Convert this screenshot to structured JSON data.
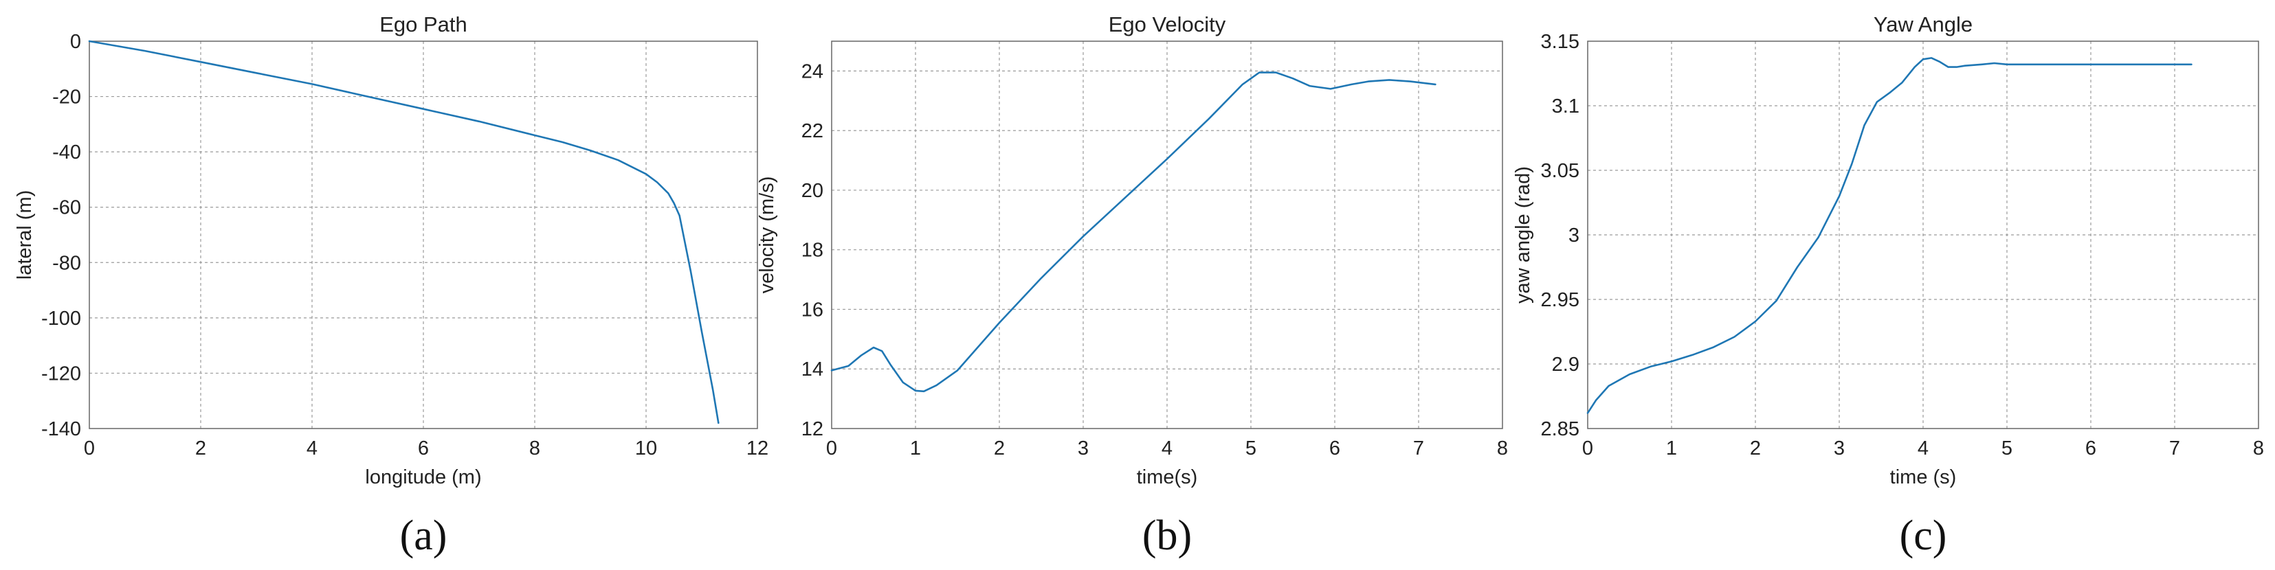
{
  "colors": {
    "series": "#1f77b4",
    "grid": "#9a9a9a",
    "axes": "#666666",
    "background": "#ffffff"
  },
  "chart_data": [
    {
      "type": "line",
      "title": "Ego Path",
      "xlabel": "longitude (m)",
      "ylabel": "lateral (m)",
      "xlim": [
        0,
        12
      ],
      "ylim": [
        -140,
        0
      ],
      "xticks": [
        "0",
        "2",
        "4",
        "6",
        "8",
        "10",
        "12"
      ],
      "yticks": [
        "0",
        "-20",
        "-40",
        "-60",
        "-80",
        "-100",
        "-120",
        "-140"
      ],
      "grid": true,
      "caption": "(a)",
      "series": [
        {
          "x": [
            0,
            1,
            2,
            3,
            4,
            5,
            6,
            7,
            8,
            8.5,
            9,
            9.5,
            10,
            10.2,
            10.4,
            10.5,
            10.6,
            10.8,
            11.0,
            11.2,
            11.3
          ],
          "y": [
            0,
            -3.5,
            -7.5,
            -11.5,
            -15.5,
            -20,
            -24.5,
            -29,
            -34,
            -36.5,
            -39.5,
            -43,
            -48,
            -51,
            -55,
            -58.5,
            -63,
            -83,
            -105,
            -126,
            -138
          ]
        }
      ]
    },
    {
      "type": "line",
      "title": "Ego Velocity",
      "xlabel": "time(s)",
      "ylabel": "velocity (m/s)",
      "xlim": [
        0,
        8
      ],
      "ylim": [
        12,
        25
      ],
      "xticks": [
        "0",
        "1",
        "2",
        "3",
        "4",
        "5",
        "6",
        "7",
        "8"
      ],
      "yticks": [
        "12",
        "14",
        "16",
        "18",
        "20",
        "22",
        "24"
      ],
      "grid": true,
      "caption": "(b)",
      "series": [
        {
          "x": [
            0,
            0.2,
            0.35,
            0.5,
            0.6,
            0.7,
            0.85,
            1.0,
            1.1,
            1.25,
            1.5,
            2.0,
            2.5,
            3.0,
            3.5,
            4.0,
            4.5,
            4.9,
            5.1,
            5.3,
            5.5,
            5.7,
            5.95,
            6.2,
            6.4,
            6.65,
            6.9,
            7.2
          ],
          "y": [
            13.95,
            14.1,
            14.45,
            14.72,
            14.6,
            14.15,
            13.55,
            13.27,
            13.25,
            13.45,
            13.95,
            15.55,
            17.05,
            18.45,
            19.75,
            21.05,
            22.4,
            23.55,
            23.95,
            23.95,
            23.75,
            23.5,
            23.4,
            23.55,
            23.65,
            23.7,
            23.65,
            23.55
          ]
        }
      ]
    },
    {
      "type": "line",
      "title": "Yaw Angle",
      "xlabel": "time (s)",
      "ylabel": "yaw angle (rad)",
      "xlim": [
        0,
        8
      ],
      "ylim": [
        2.85,
        3.15
      ],
      "xticks": [
        "0",
        "1",
        "2",
        "3",
        "4",
        "5",
        "6",
        "7",
        "8"
      ],
      "yticks": [
        "2.85",
        "2.9",
        "2.95",
        "3",
        "3.05",
        "3.1",
        "3.15"
      ],
      "grid": true,
      "caption": "(c)",
      "series": [
        {
          "x": [
            0,
            0.1,
            0.25,
            0.5,
            0.75,
            1.0,
            1.25,
            1.5,
            1.75,
            2.0,
            2.25,
            2.5,
            2.75,
            3.0,
            3.15,
            3.3,
            3.45,
            3.6,
            3.75,
            3.9,
            4.0,
            4.1,
            4.2,
            4.3,
            4.4,
            4.5,
            4.7,
            4.85,
            5.0,
            6.0,
            7.0,
            7.2
          ],
          "y": [
            2.862,
            2.872,
            2.883,
            2.892,
            2.898,
            2.902,
            2.907,
            2.913,
            2.921,
            2.933,
            2.949,
            2.975,
            2.998,
            3.03,
            3.055,
            3.085,
            3.103,
            3.11,
            3.118,
            3.13,
            3.136,
            3.137,
            3.134,
            3.13,
            3.13,
            3.131,
            3.132,
            3.133,
            3.132,
            3.132,
            3.132,
            3.132
          ]
        }
      ]
    }
  ]
}
